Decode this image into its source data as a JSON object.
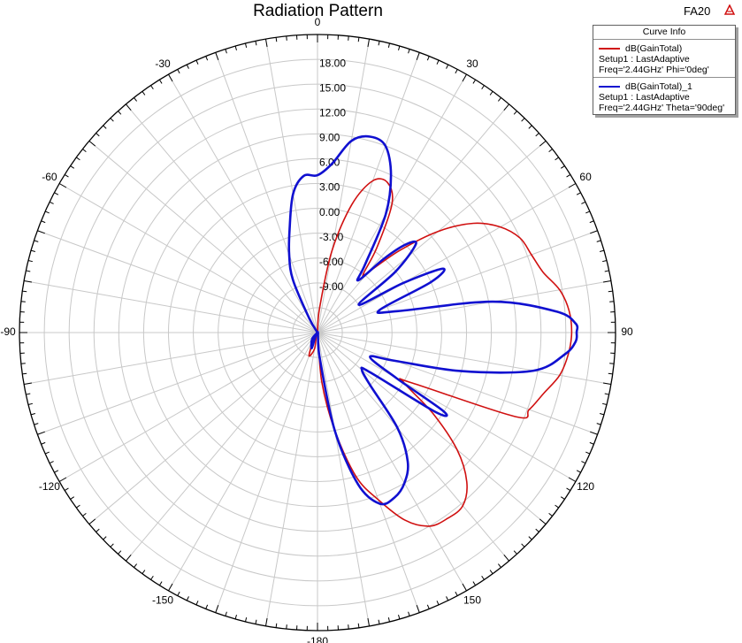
{
  "header": {
    "title": "Radiation Pattern",
    "figure_id": "FA20",
    "icon": "ansys-logo-icon"
  },
  "legend": {
    "title": "Curve Info",
    "entries": [
      {
        "name": "dB(GainTotal)",
        "setup": "Setup1 : LastAdaptive",
        "params": "Freq='2.44GHz' Phi='0deg'",
        "color": "#d01010"
      },
      {
        "name": "dB(GainTotal)_1",
        "setup": "Setup1 : LastAdaptive",
        "params": "Freq='2.44GHz' Theta='90deg'",
        "color": "#1010d0"
      }
    ]
  },
  "chart_data": {
    "type": "polar-line",
    "title": "Radiation Pattern",
    "angle_unit": "deg",
    "angle_zero": "top",
    "angle_direction": "clockwise",
    "angle_ticks": [
      0,
      30,
      60,
      90,
      120,
      150,
      -180,
      -150,
      -120,
      -90,
      -60,
      -30
    ],
    "radial_range": [
      -15,
      21
    ],
    "radial_ticks": [
      -9,
      -6,
      -3,
      0,
      3,
      6,
      9,
      12,
      15,
      18
    ],
    "radial_tick_labels": [
      "-9.00",
      "-6.00",
      "-3.00",
      "0.00",
      "3.00",
      "6.00",
      "9.00",
      "12.00",
      "15.00",
      "18.00"
    ],
    "grid": true,
    "series": [
      {
        "name": "dB(GainTotal)",
        "color": "#d01010",
        "points": [
          [
            -180,
            -15
          ],
          [
            -170,
            -13
          ],
          [
            -160,
            -12
          ],
          [
            -150,
            -14
          ],
          [
            -120,
            -15
          ],
          [
            -90,
            -15
          ],
          [
            -60,
            -15
          ],
          [
            -30,
            -15
          ],
          [
            -10,
            -15
          ],
          [
            0,
            -15
          ],
          [
            5,
            -12
          ],
          [
            10,
            -5
          ],
          [
            15,
            1
          ],
          [
            20,
            4.5
          ],
          [
            25,
            5
          ],
          [
            30,
            3
          ],
          [
            35,
            -2.5
          ],
          [
            38,
            -6
          ],
          [
            40,
            -5.5
          ],
          [
            45,
            -1
          ],
          [
            50,
            4
          ],
          [
            55,
            8
          ],
          [
            60,
            10.5
          ],
          [
            65,
            12
          ],
          [
            70,
            12.5
          ],
          [
            75,
            13.2
          ],
          [
            80,
            14.7
          ],
          [
            85,
            15.5
          ],
          [
            90,
            15.7
          ],
          [
            95,
            15.4
          ],
          [
            100,
            14.7
          ],
          [
            105,
            13.3
          ],
          [
            110,
            12.2
          ],
          [
            113,
            11
          ],
          [
            118,
            -2
          ],
          [
            120,
            -3
          ],
          [
            125,
            2
          ],
          [
            130,
            7
          ],
          [
            135,
            10.5
          ],
          [
            140,
            12.3
          ],
          [
            145,
            12.4
          ],
          [
            150,
            12
          ],
          [
            155,
            10
          ],
          [
            160,
            6.5
          ],
          [
            165,
            3
          ],
          [
            170,
            -3
          ],
          [
            175,
            -9
          ],
          [
            180,
            -15
          ]
        ]
      },
      {
        "name": "dB(GainTotal)_1",
        "color": "#1010d0",
        "points": [
          [
            -180,
            -15
          ],
          [
            -160,
            -13
          ],
          [
            -140,
            -14
          ],
          [
            -120,
            -15
          ],
          [
            -100,
            -15
          ],
          [
            -80,
            -15
          ],
          [
            -60,
            -15
          ],
          [
            -40,
            -15
          ],
          [
            -30,
            -13
          ],
          [
            -25,
            -8
          ],
          [
            -20,
            -5
          ],
          [
            -15,
            -2
          ],
          [
            -10,
            2
          ],
          [
            -5,
            4
          ],
          [
            0,
            4
          ],
          [
            5,
            5.5
          ],
          [
            10,
            8.5
          ],
          [
            15,
            9.5
          ],
          [
            20,
            9
          ],
          [
            25,
            6
          ],
          [
            30,
            1.5
          ],
          [
            35,
            -5
          ],
          [
            38,
            -7
          ],
          [
            42,
            -3
          ],
          [
            45,
            0
          ],
          [
            48,
            1
          ],
          [
            52,
            -3
          ],
          [
            56,
            -9
          ],
          [
            60,
            -3
          ],
          [
            63,
            2
          ],
          [
            66,
            0
          ],
          [
            70,
            -7
          ],
          [
            75,
            -5
          ],
          [
            80,
            6.5
          ],
          [
            85,
            14
          ],
          [
            88,
            16.2
          ],
          [
            90,
            16.3
          ],
          [
            92,
            16.2
          ],
          [
            95,
            15
          ],
          [
            100,
            11.5
          ],
          [
            105,
            3
          ],
          [
            110,
            -5
          ],
          [
            115,
            -8
          ],
          [
            120,
            -4
          ],
          [
            122,
            3
          ],
          [
            124,
            2
          ],
          [
            127,
            -7
          ],
          [
            130,
            -8
          ],
          [
            135,
            -6
          ],
          [
            140,
            0
          ],
          [
            145,
            4
          ],
          [
            150,
            6
          ],
          [
            155,
            7
          ],
          [
            160,
            7
          ],
          [
            165,
            4
          ],
          [
            170,
            -3
          ],
          [
            175,
            -12
          ],
          [
            180,
            -15
          ]
        ]
      }
    ]
  }
}
